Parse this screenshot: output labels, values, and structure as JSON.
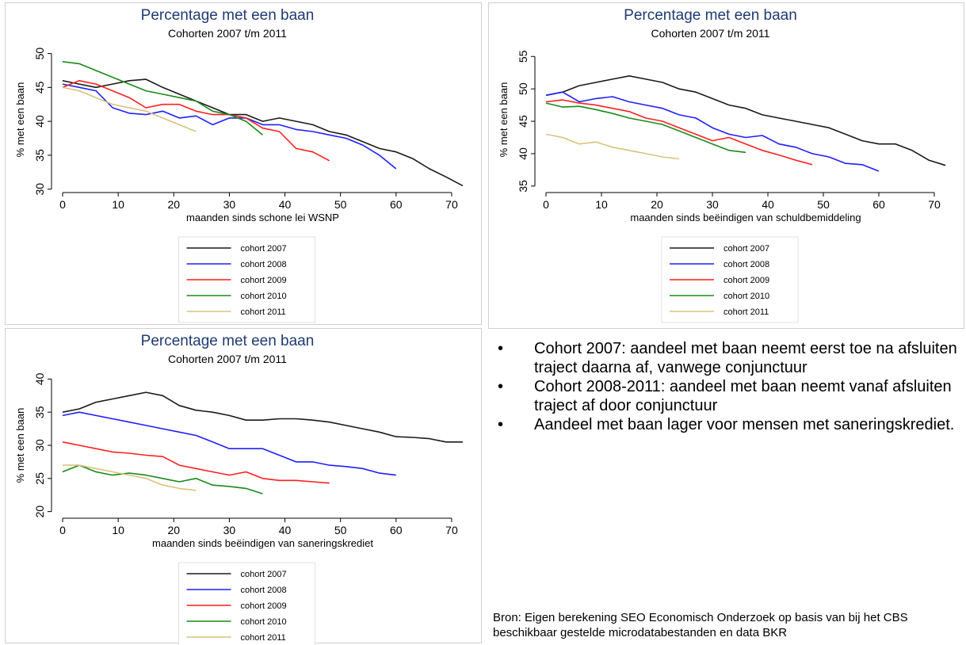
{
  "chart_data": [
    {
      "type": "line",
      "title": "Percentage met een baan",
      "subtitle": "Cohorten 2007 t/m 2011",
      "x_label": "maanden sinds schone lei WSNP",
      "y_label": "% met een baan",
      "x": [
        0,
        3,
        6,
        9,
        12,
        15,
        18,
        21,
        24,
        27,
        30,
        33,
        36,
        39,
        42,
        45,
        48,
        51,
        54,
        57,
        60,
        63,
        66,
        69,
        72
      ],
      "xlim": [
        -2,
        74
      ],
      "xticks": [
        0,
        10,
        20,
        30,
        40,
        50,
        60,
        70
      ],
      "ylim": [
        29.5,
        51
      ],
      "yticks": [
        30,
        35,
        40,
        45,
        50
      ],
      "legend": "bottom",
      "series": [
        {
          "name": "cohort 2007",
          "color": "#1a1a1a",
          "values": [
            46,
            45.5,
            45,
            45.5,
            46,
            46.2,
            45,
            44,
            43,
            42,
            41,
            41,
            40,
            40.5,
            40,
            39.5,
            38.5,
            38,
            37,
            36,
            35.5,
            34.5,
            33,
            31.8,
            30.5
          ]
        },
        {
          "name": "cohort 2008",
          "color": "#1f1fff",
          "values": [
            45.5,
            45,
            44.5,
            42,
            41.2,
            41,
            41.5,
            40.5,
            40.8,
            39.5,
            40.5,
            40.5,
            39.5,
            39.5,
            38.8,
            38.5,
            38,
            37.5,
            36.5,
            35,
            33,
            null,
            null,
            null,
            null
          ]
        },
        {
          "name": "cohort 2009",
          "color": "#ff1f1f",
          "values": [
            45,
            46,
            45.5,
            44.5,
            43.5,
            42,
            42.5,
            42.5,
            41.5,
            41,
            41,
            40.5,
            39,
            38.5,
            36,
            35.5,
            34.2,
            null,
            null,
            null,
            null,
            null,
            null,
            null,
            null
          ]
        },
        {
          "name": "cohort 2010",
          "color": "#1a8a1a",
          "values": [
            48.8,
            48.5,
            47.5,
            46.5,
            45.5,
            44.5,
            44,
            43.5,
            43,
            41.5,
            41,
            40,
            38,
            null,
            null,
            null,
            null,
            null,
            null,
            null,
            null,
            null,
            null,
            null,
            null
          ]
        },
        {
          "name": "cohort 2011",
          "color": "#d9c27c",
          "values": [
            45,
            44.5,
            43.5,
            42.5,
            42,
            41.5,
            40.5,
            39.5,
            38.5,
            null,
            null,
            null,
            null,
            null,
            null,
            null,
            null,
            null,
            null,
            null,
            null,
            null,
            null,
            null,
            null
          ]
        }
      ]
    },
    {
      "type": "line",
      "title": "Percentage met een baan",
      "subtitle": "Cohorten 2007 t/m 2011",
      "x_label": "maanden sinds beëindigen van schuldbemiddeling",
      "y_label": "% met een baan",
      "x": [
        0,
        3,
        6,
        9,
        12,
        15,
        18,
        21,
        24,
        27,
        30,
        33,
        36,
        39,
        42,
        45,
        48,
        51,
        54,
        57,
        60,
        63,
        66,
        69,
        72
      ],
      "xlim": [
        -2,
        74
      ],
      "xticks": [
        0,
        10,
        20,
        30,
        40,
        50,
        60,
        70
      ],
      "ylim": [
        34,
        56.5
      ],
      "yticks": [
        35,
        40,
        45,
        50,
        55
      ],
      "legend": "bottom",
      "series": [
        {
          "name": "cohort 2007",
          "color": "#1a1a1a",
          "values": [
            49,
            49.5,
            50.5,
            51,
            51.5,
            52,
            51.5,
            51,
            50,
            49.5,
            48.5,
            47.5,
            47,
            46,
            45.5,
            45,
            44.5,
            44,
            43,
            42,
            41.5,
            41.5,
            40.5,
            39,
            38.2
          ]
        },
        {
          "name": "cohort 2008",
          "color": "#1f1fff",
          "values": [
            49,
            49.5,
            48,
            48.5,
            48.8,
            48,
            47.5,
            47,
            46,
            45.5,
            44,
            43,
            42.5,
            42.8,
            41.5,
            41,
            40,
            39.5,
            38.5,
            38.3,
            37.3,
            null,
            null,
            null,
            null
          ]
        },
        {
          "name": "cohort 2009",
          "color": "#ff1f1f",
          "values": [
            48,
            48.3,
            47.8,
            47.5,
            47,
            46.5,
            45.5,
            45,
            44,
            43,
            42,
            42.5,
            41.5,
            40.5,
            39.8,
            39,
            38.3,
            null,
            null,
            null,
            null,
            null,
            null,
            null,
            null
          ]
        },
        {
          "name": "cohort 2010",
          "color": "#1a8a1a",
          "values": [
            47.8,
            47.2,
            47.3,
            46.8,
            46.2,
            45.5,
            45,
            44.5,
            43.5,
            42.5,
            41.5,
            40.5,
            40.2,
            null,
            null,
            null,
            null,
            null,
            null,
            null,
            null,
            null,
            null,
            null,
            null
          ]
        },
        {
          "name": "cohort 2011",
          "color": "#d9c27c",
          "values": [
            43,
            42.5,
            41.5,
            41.8,
            41,
            40.5,
            40,
            39.5,
            39.2,
            null,
            null,
            null,
            null,
            null,
            null,
            null,
            null,
            null,
            null,
            null,
            null,
            null,
            null,
            null,
            null
          ]
        }
      ]
    },
    {
      "type": "line",
      "title": "Percentage met een baan",
      "subtitle": "Cohorten 2007 t/m 2011",
      "x_label": "maanden sinds beëindigen van saneringskrediet",
      "y_label": "% met een baan",
      "x": [
        0,
        3,
        6,
        9,
        12,
        15,
        18,
        21,
        24,
        27,
        30,
        33,
        36,
        39,
        42,
        45,
        48,
        51,
        54,
        57,
        60,
        63,
        66,
        69,
        72
      ],
      "xlim": [
        -2,
        74
      ],
      "xticks": [
        0,
        10,
        20,
        30,
        40,
        50,
        60,
        70
      ],
      "ylim": [
        19,
        41
      ],
      "yticks": [
        20,
        25,
        30,
        35,
        40
      ],
      "legend": "bottom",
      "series": [
        {
          "name": "cohort 2007",
          "color": "#1a1a1a",
          "values": [
            35,
            35.5,
            36.5,
            37,
            37.5,
            38,
            37.5,
            36,
            35.3,
            35,
            34.5,
            33.8,
            33.8,
            34,
            34,
            33.8,
            33.5,
            33,
            32.5,
            32,
            31.3,
            31.2,
            31,
            30.5,
            30.5
          ]
        },
        {
          "name": "cohort 2008",
          "color": "#1f1fff",
          "values": [
            34.5,
            35,
            34.5,
            34,
            33.5,
            33,
            32.5,
            32,
            31.5,
            30.5,
            29.5,
            29.5,
            29.5,
            28.5,
            27.5,
            27.5,
            27,
            26.8,
            26.5,
            25.8,
            25.5,
            null,
            null,
            null,
            null
          ]
        },
        {
          "name": "cohort 2009",
          "color": "#ff1f1f",
          "values": [
            30.5,
            30,
            29.5,
            29,
            28.8,
            28.5,
            28.3,
            27,
            26.5,
            26,
            25.5,
            26,
            25,
            24.7,
            24.7,
            24.5,
            24.3,
            null,
            null,
            null,
            null,
            null,
            null,
            null,
            null
          ]
        },
        {
          "name": "cohort 2010",
          "color": "#1a8a1a",
          "values": [
            26,
            27,
            26,
            25.5,
            25.8,
            25.5,
            25,
            24.5,
            25,
            24,
            23.8,
            23.5,
            22.7,
            null,
            null,
            null,
            null,
            null,
            null,
            null,
            null,
            null,
            null,
            null,
            null
          ]
        },
        {
          "name": "cohort 2011",
          "color": "#d9c27c",
          "values": [
            27,
            27,
            26.5,
            26,
            25.5,
            25,
            24,
            23.5,
            23.2,
            null,
            null,
            null,
            null,
            null,
            null,
            null,
            null,
            null,
            null,
            null,
            null,
            null,
            null,
            null,
            null
          ]
        }
      ]
    }
  ],
  "bullets": [
    "Cohort 2007: aandeel met baan neemt eerst toe na afsluiten traject daarna af, vanwege conjunctuur",
    "Cohort 2008-2011: aandeel met baan neemt vanaf afsluiten traject af door conjunctuur",
    "Aandeel met baan lager voor mensen met saneringskrediet."
  ],
  "source": "Bron: Eigen berekening SEO Economisch Onderzoek op basis van bij het CBS beschikbaar gestelde microdatabestanden en data BKR"
}
